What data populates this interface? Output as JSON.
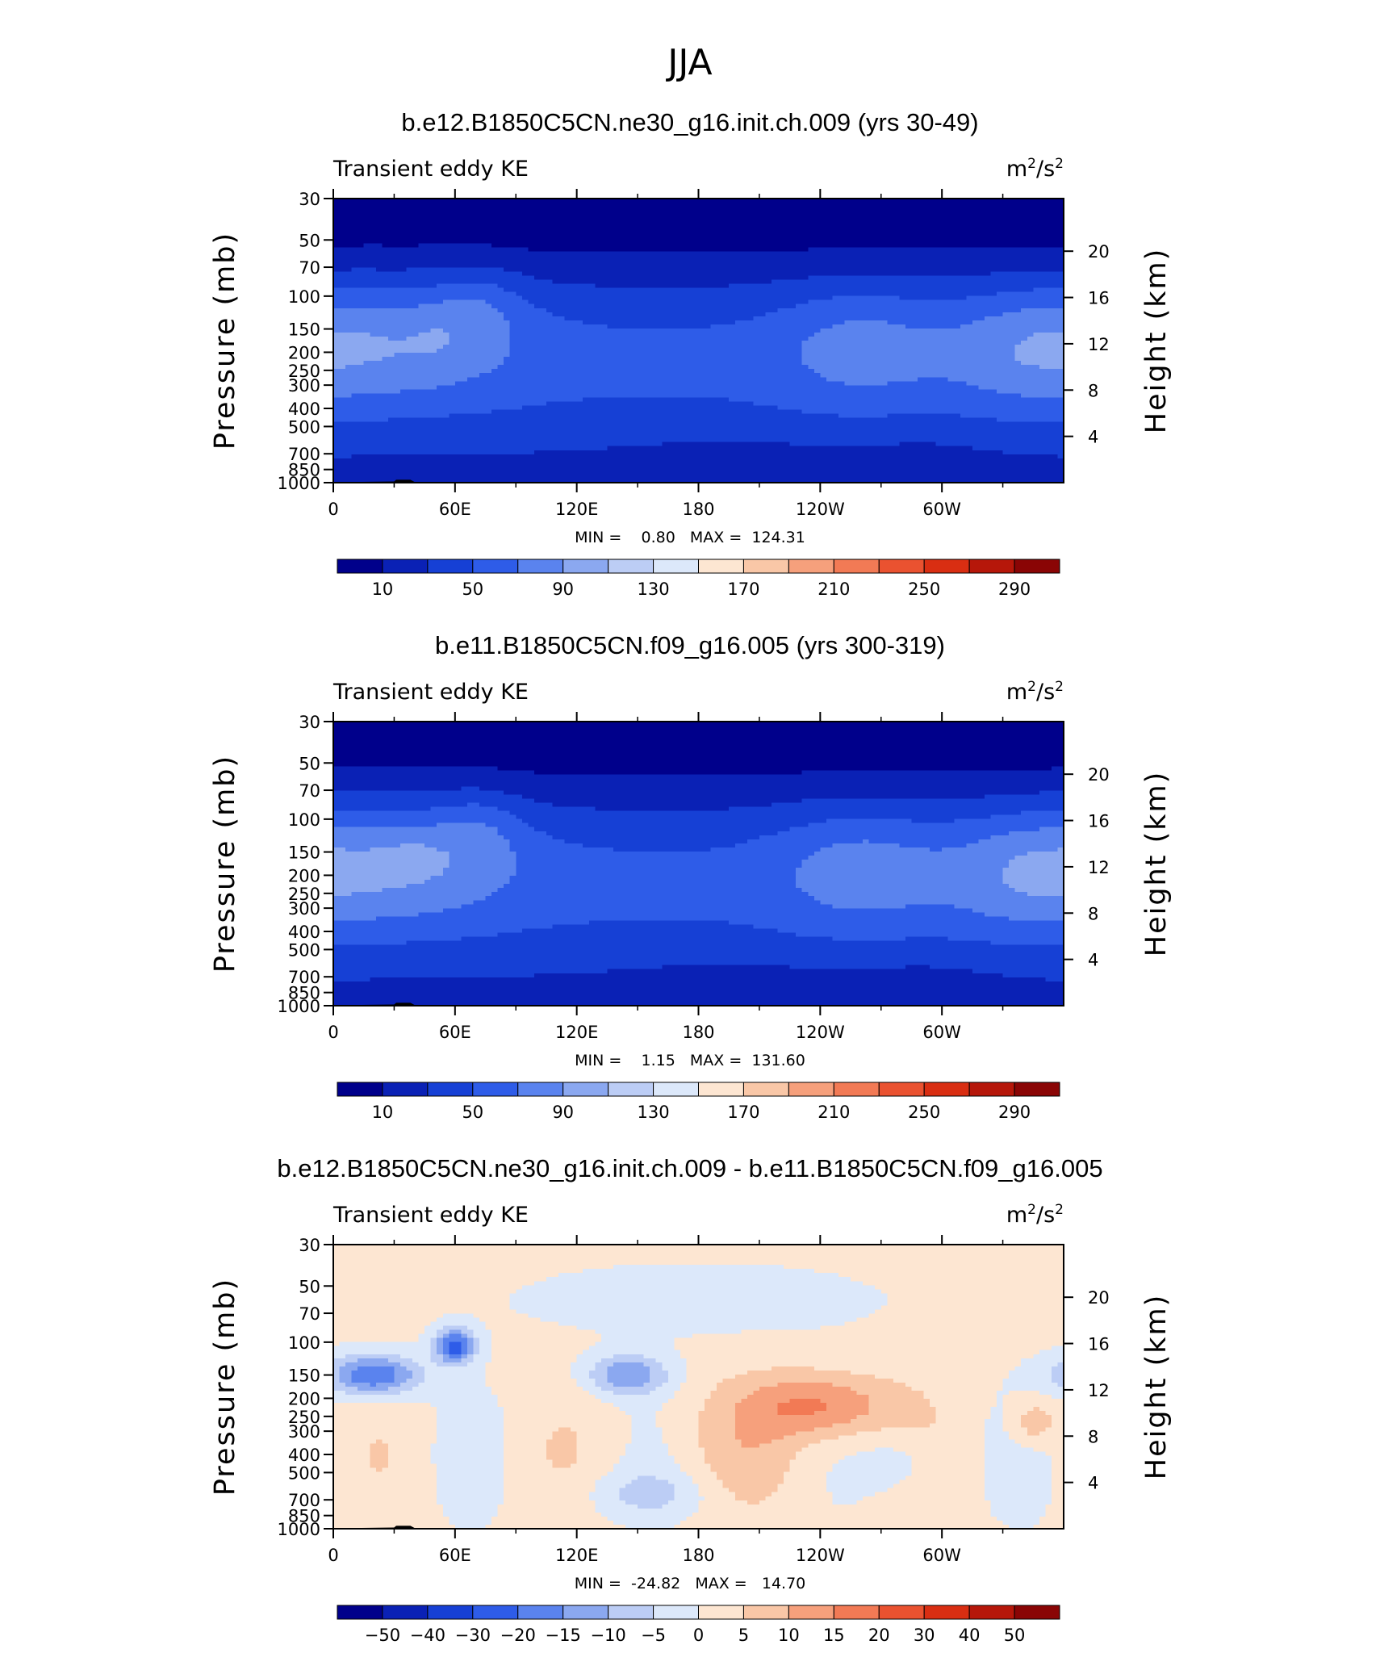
{
  "figure_title": "JJA",
  "chart_data": [
    {
      "type": "contour",
      "title": "b.e12.B1850C5CN.ne30_g16.init.ch.009 (yrs 30-49)",
      "left_label": "Transient eddy KE",
      "units_base": "m",
      "units_exp1": "2",
      "units_sep": "/s",
      "units_exp2": "2",
      "ylabel": "Pressure (mb)",
      "ylabel_right": "Height (km)",
      "x_ticks": [
        "0",
        "60E",
        "120E",
        "180",
        "120W",
        "60W"
      ],
      "x_tick_values": [
        0,
        60,
        120,
        180,
        240,
        300
      ],
      "xlim": [
        0,
        360
      ],
      "y_ticks": [
        "30",
        "50",
        "70",
        "100",
        "150",
        "200",
        "250",
        "300",
        "400",
        "500",
        "700",
        "850",
        "1000"
      ],
      "y_tick_values": [
        30,
        50,
        70,
        100,
        150,
        200,
        250,
        300,
        400,
        500,
        700,
        850,
        1000
      ],
      "ylim": [
        30,
        1000
      ],
      "height_ticks": [
        "4",
        "8",
        "12",
        "16",
        "20"
      ],
      "height_tick_values": [
        4,
        8,
        12,
        16,
        20
      ],
      "stats_text": "MIN =    0.80   MAX =  124.31",
      "min": 0.8,
      "max": 124.31,
      "colorbar_labels": [
        "10",
        "50",
        "90",
        "130",
        "170",
        "210",
        "250",
        "290"
      ],
      "colorbar_levels": [
        10,
        30,
        50,
        70,
        90,
        110,
        130,
        150,
        170,
        190,
        210,
        230,
        250,
        270,
        290
      ],
      "colorbar_colors": [
        "#00008b",
        "#0a21b5",
        "#1640d5",
        "#2e5ce8",
        "#5a83ee",
        "#8ba8f0",
        "#bccdf5",
        "#dce8fa",
        "#fde6d2",
        "#f9c7a7",
        "#f6a07c",
        "#f27a55",
        "#ea5230",
        "#d92e12",
        "#b6170a",
        "#8a0505"
      ]
    },
    {
      "type": "contour",
      "title": "b.e11.B1850C5CN.f09_g16.005 (yrs 300-319)",
      "left_label": "Transient eddy KE",
      "units_base": "m",
      "units_exp1": "2",
      "units_sep": "/s",
      "units_exp2": "2",
      "ylabel": "Pressure (mb)",
      "ylabel_right": "Height (km)",
      "x_ticks": [
        "0",
        "60E",
        "120E",
        "180",
        "120W",
        "60W"
      ],
      "x_tick_values": [
        0,
        60,
        120,
        180,
        240,
        300
      ],
      "xlim": [
        0,
        360
      ],
      "y_ticks": [
        "30",
        "50",
        "70",
        "100",
        "150",
        "200",
        "250",
        "300",
        "400",
        "500",
        "700",
        "850",
        "1000"
      ],
      "y_tick_values": [
        30,
        50,
        70,
        100,
        150,
        200,
        250,
        300,
        400,
        500,
        700,
        850,
        1000
      ],
      "ylim": [
        30,
        1000
      ],
      "height_ticks": [
        "4",
        "8",
        "12",
        "16",
        "20"
      ],
      "height_tick_values": [
        4,
        8,
        12,
        16,
        20
      ],
      "stats_text": "MIN =    1.15   MAX =  131.60",
      "min": 1.15,
      "max": 131.6,
      "colorbar_labels": [
        "10",
        "50",
        "90",
        "130",
        "170",
        "210",
        "250",
        "290"
      ],
      "colorbar_levels": [
        10,
        30,
        50,
        70,
        90,
        110,
        130,
        150,
        170,
        190,
        210,
        230,
        250,
        270,
        290
      ],
      "colorbar_colors": [
        "#00008b",
        "#0a21b5",
        "#1640d5",
        "#2e5ce8",
        "#5a83ee",
        "#8ba8f0",
        "#bccdf5",
        "#dce8fa",
        "#fde6d2",
        "#f9c7a7",
        "#f6a07c",
        "#f27a55",
        "#ea5230",
        "#d92e12",
        "#b6170a",
        "#8a0505"
      ]
    },
    {
      "type": "contour",
      "title": "b.e12.B1850C5CN.ne30_g16.init.ch.009 - b.e11.B1850C5CN.f09_g16.005",
      "left_label": "Transient eddy KE",
      "units_base": "m",
      "units_exp1": "2",
      "units_sep": "/s",
      "units_exp2": "2",
      "ylabel": "Pressure (mb)",
      "ylabel_right": "Height (km)",
      "x_ticks": [
        "0",
        "60E",
        "120E",
        "180",
        "120W",
        "60W"
      ],
      "x_tick_values": [
        0,
        60,
        120,
        180,
        240,
        300
      ],
      "xlim": [
        0,
        360
      ],
      "y_ticks": [
        "30",
        "50",
        "70",
        "100",
        "150",
        "200",
        "250",
        "300",
        "400",
        "500",
        "700",
        "850",
        "1000"
      ],
      "y_tick_values": [
        30,
        50,
        70,
        100,
        150,
        200,
        250,
        300,
        400,
        500,
        700,
        850,
        1000
      ],
      "ylim": [
        30,
        1000
      ],
      "height_ticks": [
        "4",
        "8",
        "12",
        "16",
        "20"
      ],
      "height_tick_values": [
        4,
        8,
        12,
        16,
        20
      ],
      "stats_text": "MIN =  -24.82   MAX =   14.70",
      "min": -24.82,
      "max": 14.7,
      "colorbar_labels": [
        "-50",
        "-40",
        "-30",
        "-20",
        "-15",
        "-10",
        "-5",
        "0",
        "5",
        "10",
        "15",
        "20",
        "30",
        "40",
        "50"
      ],
      "colorbar_levels": [
        -50,
        -40,
        -30,
        -20,
        -15,
        -10,
        -5,
        0,
        5,
        10,
        15,
        20,
        30,
        40,
        50
      ],
      "colorbar_colors": [
        "#00008b",
        "#0a21b5",
        "#1640d5",
        "#2e5ce8",
        "#5a83ee",
        "#8ba8f0",
        "#bccdf5",
        "#dce8fa",
        "#fde6d2",
        "#f9c7a7",
        "#f6a07c",
        "#f27a55",
        "#ea5230",
        "#d92e12",
        "#b6170a",
        "#8a0505"
      ]
    }
  ]
}
